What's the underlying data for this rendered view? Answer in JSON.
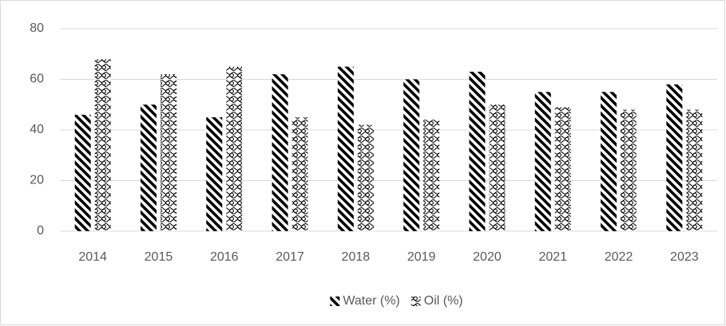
{
  "chart_data": {
    "type": "bar",
    "categories": [
      "2014",
      "2015",
      "2016",
      "2017",
      "2018",
      "2019",
      "2020",
      "2021",
      "2022",
      "2023"
    ],
    "series": [
      {
        "name": "Water (%)",
        "color": "#000000",
        "pattern": "stripes",
        "values": [
          46,
          50,
          45,
          62,
          65,
          60,
          63,
          55,
          55,
          58
        ]
      },
      {
        "name": "Oil (%)",
        "color": "#000000",
        "pattern": "waves",
        "values": [
          68,
          62,
          65,
          45,
          42,
          44,
          50,
          49,
          48,
          48
        ]
      }
    ],
    "ylim": [
      0,
      80
    ],
    "yticks": [
      0,
      20,
      40,
      60,
      80
    ],
    "grid": true,
    "legend": "bottom"
  }
}
